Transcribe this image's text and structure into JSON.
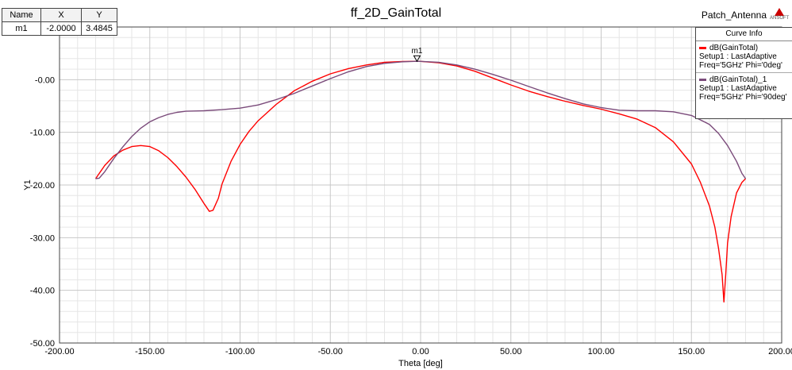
{
  "chart_data": {
    "type": "line",
    "title": "ff_2D_GainTotal",
    "project_label": "Patch_Antenna",
    "logo_text": "ANSOFT",
    "xlabel": "Theta [deg]",
    "ylabel": "Y1",
    "xlim": [
      -200,
      200
    ],
    "ylim": [
      -50,
      10
    ],
    "x_ticks": [
      "-200.00",
      "-150.00",
      "-100.00",
      "-50.00",
      "0.00",
      "50.00",
      "100.00",
      "150.00",
      "200.00"
    ],
    "y_ticks": [
      "-0.00",
      "-10.00",
      "-20.00",
      "-30.00",
      "-40.00",
      "-50.00"
    ],
    "grid": true,
    "legend_title": "Curve Info",
    "legend_position": "top-right",
    "marker_table": {
      "headers": [
        "Name",
        "X",
        "Y"
      ],
      "row": [
        "m1",
        "-2.0000",
        "3.4845"
      ]
    },
    "marker": {
      "name": "m1",
      "x": -2,
      "y": 3.4845
    },
    "series": [
      {
        "name": "dB(GainTotal)",
        "setup": "Setup1 : LastAdaptive",
        "variation": "Freq='5GHz' Phi='0deg'",
        "color": "#ff0000",
        "points": [
          [
            -180,
            -18.8
          ],
          [
            -175,
            -16.3
          ],
          [
            -170,
            -14.5
          ],
          [
            -165,
            -13.4
          ],
          [
            -160,
            -12.7
          ],
          [
            -155,
            -12.5
          ],
          [
            -150,
            -12.7
          ],
          [
            -145,
            -13.5
          ],
          [
            -140,
            -14.8
          ],
          [
            -135,
            -16.5
          ],
          [
            -130,
            -18.5
          ],
          [
            -125,
            -20.8
          ],
          [
            -120,
            -23.5
          ],
          [
            -117,
            -25.0
          ],
          [
            -115,
            -24.8
          ],
          [
            -112,
            -22.5
          ],
          [
            -110,
            -19.8
          ],
          [
            -105,
            -15.5
          ],
          [
            -100,
            -12.3
          ],
          [
            -95,
            -9.8
          ],
          [
            -90,
            -7.8
          ],
          [
            -80,
            -4.7
          ],
          [
            -70,
            -2.1
          ],
          [
            -60,
            -0.3
          ],
          [
            -50,
            1.1
          ],
          [
            -40,
            2.1
          ],
          [
            -30,
            2.8
          ],
          [
            -20,
            3.3
          ],
          [
            -10,
            3.45
          ],
          [
            -2,
            3.48
          ],
          [
            0,
            3.47
          ],
          [
            10,
            3.2
          ],
          [
            20,
            2.6
          ],
          [
            30,
            1.6
          ],
          [
            40,
            0.3
          ],
          [
            50,
            -1.0
          ],
          [
            60,
            -2.2
          ],
          [
            70,
            -3.2
          ],
          [
            80,
            -4.1
          ],
          [
            90,
            -4.9
          ],
          [
            100,
            -5.6
          ],
          [
            110,
            -6.5
          ],
          [
            120,
            -7.5
          ],
          [
            130,
            -9.1
          ],
          [
            140,
            -11.8
          ],
          [
            150,
            -16.0
          ],
          [
            155,
            -19.5
          ],
          [
            160,
            -24.0
          ],
          [
            163,
            -28.0
          ],
          [
            165,
            -32.0
          ],
          [
            167,
            -37.0
          ],
          [
            168,
            -42.2
          ],
          [
            169,
            -37.0
          ],
          [
            170,
            -31.0
          ],
          [
            172,
            -26.0
          ],
          [
            175,
            -21.5
          ],
          [
            178,
            -19.5
          ],
          [
            180,
            -18.8
          ]
        ]
      },
      {
        "name": "dB(GainTotal)_1",
        "setup": "Setup1 : LastAdaptive",
        "variation": "Freq='5GHz' Phi='90deg'",
        "color": "#7a4a7a",
        "points": [
          [
            -180,
            -18.8
          ],
          [
            -178,
            -18.7
          ],
          [
            -175,
            -17.5
          ],
          [
            -170,
            -15.0
          ],
          [
            -165,
            -12.8
          ],
          [
            -160,
            -10.8
          ],
          [
            -155,
            -9.2
          ],
          [
            -150,
            -8.0
          ],
          [
            -145,
            -7.2
          ],
          [
            -140,
            -6.6
          ],
          [
            -135,
            -6.2
          ],
          [
            -130,
            -6.0
          ],
          [
            -120,
            -5.9
          ],
          [
            -110,
            -5.7
          ],
          [
            -100,
            -5.4
          ],
          [
            -90,
            -4.8
          ],
          [
            -80,
            -3.8
          ],
          [
            -70,
            -2.6
          ],
          [
            -60,
            -1.2
          ],
          [
            -50,
            0.2
          ],
          [
            -40,
            1.5
          ],
          [
            -30,
            2.5
          ],
          [
            -20,
            3.1
          ],
          [
            -10,
            3.4
          ],
          [
            -2,
            3.48
          ],
          [
            0,
            3.47
          ],
          [
            10,
            3.3
          ],
          [
            20,
            2.8
          ],
          [
            30,
            2.0
          ],
          [
            40,
            1.0
          ],
          [
            50,
            -0.1
          ],
          [
            60,
            -1.3
          ],
          [
            70,
            -2.5
          ],
          [
            80,
            -3.6
          ],
          [
            90,
            -4.6
          ],
          [
            100,
            -5.3
          ],
          [
            110,
            -5.8
          ],
          [
            120,
            -5.9
          ],
          [
            130,
            -5.9
          ],
          [
            140,
            -6.1
          ],
          [
            150,
            -6.8
          ],
          [
            160,
            -8.5
          ],
          [
            165,
            -10.2
          ],
          [
            170,
            -12.5
          ],
          [
            175,
            -15.5
          ],
          [
            178,
            -17.8
          ],
          [
            180,
            -18.8
          ]
        ]
      }
    ]
  }
}
